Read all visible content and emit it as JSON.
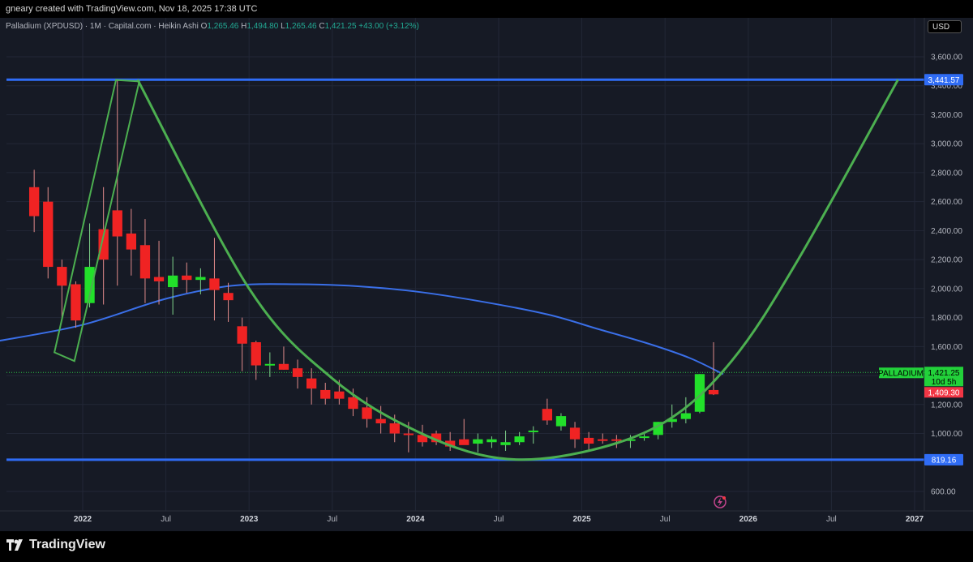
{
  "header": {
    "attribution": "gneary created with TradingView.com, Nov 18, 2025 17:38 UTC"
  },
  "legend": {
    "title": "Palladium (XPDUSD) · 1M · Capital.com · Heikin Ashi",
    "o_label": "O",
    "o_value": "1,265.46",
    "h_label": "H",
    "h_value": "1,494.80",
    "l_label": "L",
    "l_value": "1,265.46",
    "c_label": "C",
    "c_value": "1,421.25 +43.00 (+3.12%)"
  },
  "currency": "USD",
  "colors": {
    "background": "#161a25",
    "up": "#22e02a",
    "down": "#f02323",
    "line_blue": "#2f6cf5",
    "ma_blue": "#3a6fe8",
    "cup_green": "#4caf50"
  },
  "price_axis": {
    "ticks": [
      "600.00",
      "1,000.00",
      "1,200.00",
      "1,400.00",
      "1,600.00",
      "1,800.00",
      "2,000.00",
      "2,200.00",
      "2,400.00",
      "2,600.00",
      "2,800.00",
      "3,000.00",
      "3,200.00",
      "3,400.00",
      "3,600.00"
    ],
    "tick_values": [
      600,
      1000,
      1200,
      1400,
      1600,
      1800,
      2000,
      2200,
      2400,
      2600,
      2800,
      3000,
      3200,
      3400,
      3600
    ]
  },
  "time_axis": {
    "labels": [
      "2022",
      "Jul",
      "2023",
      "Jul",
      "2024",
      "Jul",
      "2025",
      "Jul",
      "2026",
      "Jul",
      "2027"
    ],
    "year_flags": [
      true,
      false,
      true,
      false,
      true,
      false,
      true,
      false,
      true,
      false,
      true
    ]
  },
  "badges": {
    "resistance": "3,441.57",
    "support": "819.16",
    "symbol": "PALLADIUM",
    "last_price": "1,421.25",
    "countdown": "10d 5h",
    "ma_value": "1,409.30"
  },
  "levels": {
    "resistance": 3441.57,
    "support": 819.16,
    "last": 1421.25
  },
  "chart_data": {
    "type": "candlestick",
    "style": "Heikin Ashi",
    "interval": "1M",
    "months": [
      "2021-09",
      "2021-10",
      "2021-11",
      "2021-12",
      "2022-01",
      "2022-02",
      "2022-03",
      "2022-04",
      "2022-05",
      "2022-06",
      "2022-07",
      "2022-08",
      "2022-09",
      "2022-10",
      "2022-11",
      "2022-12",
      "2023-01",
      "2023-02",
      "2023-03",
      "2023-04",
      "2023-05",
      "2023-06",
      "2023-07",
      "2023-08",
      "2023-09",
      "2023-10",
      "2023-11",
      "2023-12",
      "2024-01",
      "2024-02",
      "2024-03",
      "2024-04",
      "2024-05",
      "2024-06",
      "2024-07",
      "2024-08",
      "2024-09",
      "2024-10",
      "2024-11",
      "2024-12",
      "2025-01",
      "2025-02",
      "2025-03",
      "2025-04",
      "2025-05",
      "2025-06",
      "2025-07",
      "2025-08",
      "2025-09",
      "2025-10"
    ],
    "open": [
      2700,
      2600,
      2150,
      2030,
      1900,
      2410,
      2540,
      2380,
      2300,
      2080,
      2010,
      2090,
      2060,
      2070,
      1970,
      1740,
      1630,
      1480,
      1480,
      1450,
      1380,
      1300,
      1290,
      1250,
      1180,
      1100,
      1070,
      1000,
      990,
      1000,
      950,
      960,
      930,
      940,
      920,
      940,
      1020,
      1170,
      1050,
      1040,
      970,
      960,
      960,
      950,
      970,
      990,
      1080,
      1100,
      1150,
      1300
    ],
    "close": [
      2500,
      2150,
      2020,
      1780,
      2150,
      2200,
      2360,
      2270,
      2070,
      2050,
      2090,
      2060,
      2080,
      1990,
      1920,
      1620,
      1470,
      1480,
      1440,
      1390,
      1310,
      1240,
      1240,
      1170,
      1100,
      1070,
      1000,
      990,
      940,
      940,
      910,
      920,
      960,
      960,
      940,
      980,
      1020,
      1090,
      1120,
      960,
      930,
      950,
      950,
      960,
      980,
      1080,
      1100,
      1140,
      1410,
      1270
    ],
    "high": [
      2820,
      2700,
      2200,
      2050,
      2450,
      2700,
      3440,
      2550,
      2480,
      2330,
      2220,
      2180,
      2140,
      2350,
      2040,
      1800,
      1640,
      1560,
      1600,
      1510,
      1450,
      1350,
      1370,
      1310,
      1250,
      1190,
      1130,
      1080,
      1060,
      1020,
      1010,
      1100,
      1000,
      980,
      1020,
      1010,
      1050,
      1240,
      1140,
      1080,
      1010,
      1000,
      990,
      990,
      1000,
      1080,
      1200,
      1250,
      1410,
      1630
    ],
    "low": [
      2390,
      2070,
      1780,
      1730,
      1870,
      1890,
      2020,
      2090,
      1900,
      1890,
      1820,
      1970,
      1960,
      1780,
      1770,
      1430,
      1370,
      1390,
      1440,
      1310,
      1200,
      1200,
      1200,
      1120,
      1040,
      1000,
      940,
      870,
      910,
      920,
      880,
      930,
      870,
      900,
      880,
      920,
      930,
      1060,
      1020,
      900,
      880,
      930,
      900,
      900,
      950,
      960,
      1040,
      1070,
      1140,
      1265.46
    ],
    "ma_curve": [
      [
        2021.5,
        1640
      ],
      [
        2022.0,
        1750
      ],
      [
        2022.5,
        1930
      ],
      [
        2022.9,
        2020
      ],
      [
        2023.3,
        2030
      ],
      [
        2023.6,
        2020
      ],
      [
        2024.0,
        1980
      ],
      [
        2024.4,
        1910
      ],
      [
        2024.8,
        1820
      ],
      [
        2025.1,
        1720
      ],
      [
        2025.4,
        1620
      ],
      [
        2025.65,
        1520
      ],
      [
        2025.85,
        1409.3
      ]
    ],
    "cup_curve": [
      [
        2022.33,
        3441.57
      ],
      [
        2023.0,
        2000
      ],
      [
        2023.5,
        1380
      ],
      [
        2024.0,
        1020
      ],
      [
        2024.5,
        830
      ],
      [
        2025.0,
        870
      ],
      [
        2025.5,
        1080
      ],
      [
        2025.9,
        1500
      ],
      [
        2026.3,
        2200
      ],
      [
        2026.9,
        3441.57
      ]
    ],
    "flag_polygon": [
      [
        2021.83,
        1560
      ],
      [
        2021.95,
        1500
      ],
      [
        2022.34,
        3430
      ],
      [
        2022.2,
        3440
      ]
    ],
    "resistance_line": 3441.57,
    "support_line": 819.16,
    "last_price_line": 1421.25,
    "ylim": [
      450,
      3750
    ],
    "xlim": [
      2021.5,
      2027.15
    ],
    "log_scale": false,
    "grid": true
  }
}
